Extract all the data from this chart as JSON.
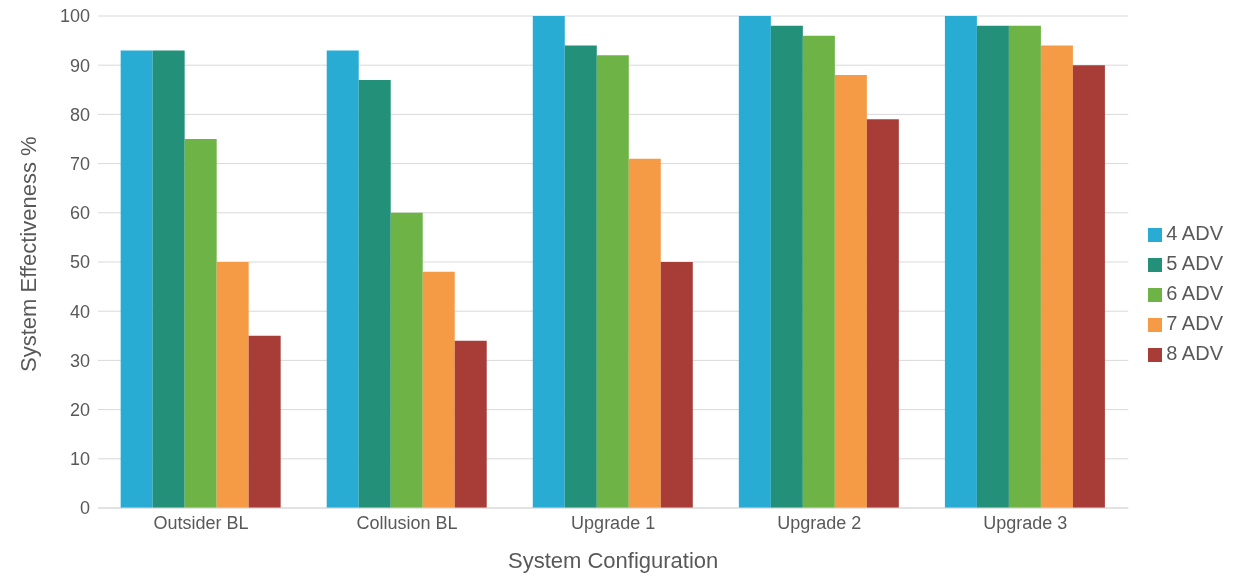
{
  "chart_data": {
    "type": "bar",
    "xlabel": "System Configuration",
    "ylabel": "System Effectiveness %",
    "categories": [
      "Outsider BL",
      "Collusion BL",
      "Upgrade 1",
      "Upgrade 2",
      "Upgrade 3"
    ],
    "series": [
      {
        "name": "4 ADV",
        "color": "#29acd4",
        "values": [
          93,
          93,
          100,
          100,
          100
        ]
      },
      {
        "name": "5 ADV",
        "color": "#23907a",
        "values": [
          93,
          87,
          94,
          98,
          98
        ]
      },
      {
        "name": "6 ADV",
        "color": "#6db345",
        "values": [
          75,
          60,
          92,
          96,
          98
        ]
      },
      {
        "name": "7 ADV",
        "color": "#f59b45",
        "values": [
          50,
          48,
          71,
          88,
          94
        ]
      },
      {
        "name": "8 ADV",
        "color": "#a83d38",
        "values": [
          35,
          34,
          50,
          79,
          90
        ]
      }
    ],
    "ylim": [
      0,
      100
    ],
    "yticks": [
      0,
      10,
      20,
      30,
      40,
      50,
      60,
      70,
      80,
      90,
      100
    ],
    "grid": "y",
    "legend": "right"
  }
}
